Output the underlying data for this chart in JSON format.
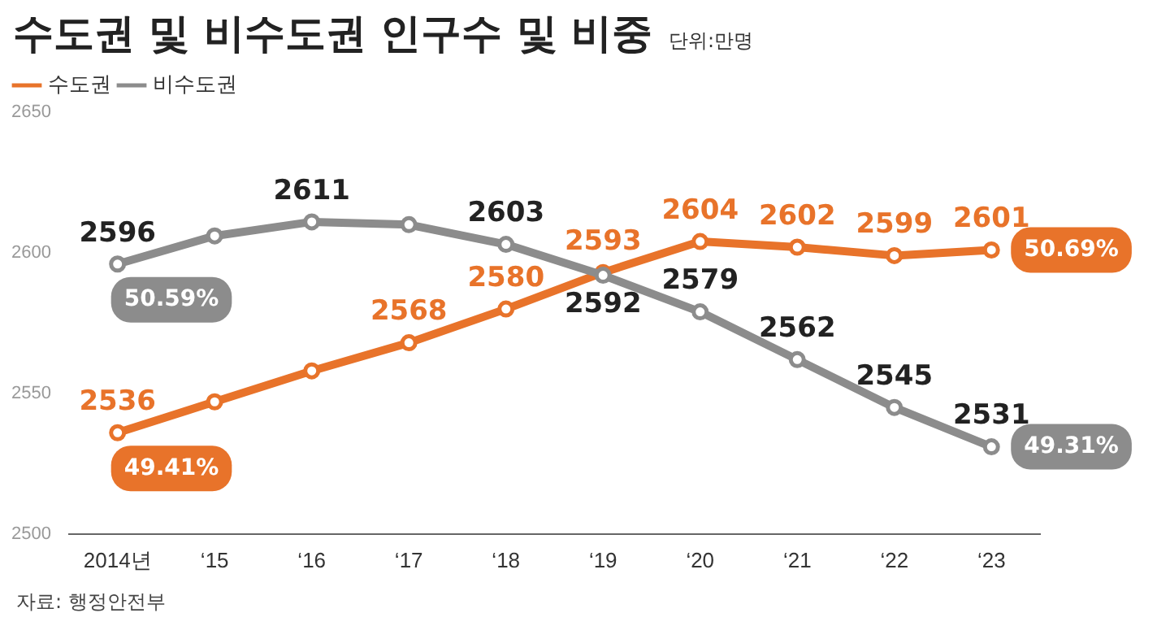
{
  "chart_data": {
    "type": "line",
    "title": "수도권 및 비수도권 인구수 및 비중",
    "subtitle": "단위:만명",
    "categories": [
      "2014년",
      "‘15",
      "‘16",
      "‘17",
      "‘18",
      "‘19",
      "‘20",
      "‘21",
      "‘22",
      "‘23"
    ],
    "series": [
      {
        "name": "수도권",
        "color": "#e8732a",
        "values": [
          2536,
          2547,
          2558,
          2568,
          2580,
          2593,
          2604,
          2602,
          2599,
          2601
        ],
        "value_labels": [
          "2536",
          null,
          null,
          "2568",
          "2580",
          "2593",
          "2604",
          "2602",
          "2599",
          "2601"
        ]
      },
      {
        "name": "비수도권",
        "color": "#8c8c8c",
        "values": [
          2596,
          2606,
          2611,
          2610,
          2603,
          2592,
          2579,
          2562,
          2545,
          2531
        ],
        "value_labels": [
          "2596",
          null,
          "2611",
          null,
          "2603",
          "2592",
          "2579",
          "2562",
          "2545",
          "2531"
        ]
      }
    ],
    "ylim": [
      2500,
      2650
    ],
    "yticks": [
      2500,
      2550,
      2600,
      2650
    ],
    "grid": false,
    "legend": "top left",
    "marker": "circle",
    "annotations": [
      {
        "text": "50.59%",
        "x": "2014년",
        "y": 2596
      },
      {
        "text": "49.41%",
        "x": "2014년",
        "y": 2536
      },
      {
        "text": "50.69%",
        "x": "‘23",
        "y": 2601
      },
      {
        "text": "49.31%",
        "x": "‘23",
        "y": 2531
      },
      "자료: 행정안전부"
    ]
  }
}
